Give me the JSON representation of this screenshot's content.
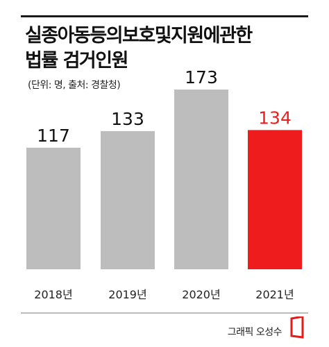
{
  "header": {
    "title_line1": "실종아동등의보호및지원에관한",
    "title_line2": "법률 검거인원",
    "subtitle": "(단위: 명, 출처: 경찰청)"
  },
  "footer": {
    "credit": "그래픽 오성수"
  },
  "colors": {
    "bar": "#bdbdbd",
    "highlight": "#ee1c1c",
    "text": "#111111",
    "highlight_text": "#ee1c1c"
  },
  "chart_data": {
    "type": "bar",
    "categories": [
      "2018년",
      "2019년",
      "2020년",
      "2021년"
    ],
    "values": [
      117,
      133,
      173,
      134
    ],
    "highlight_index": 3,
    "title": "실종아동등의보호및지원에관한 법률 검거인원",
    "unit": "명",
    "ylim": [
      0,
      173
    ],
    "grid": false,
    "legend": "none"
  }
}
